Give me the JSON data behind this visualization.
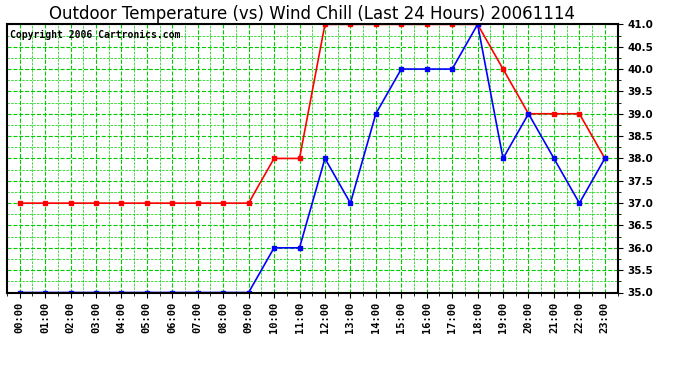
{
  "title": "Outdoor Temperature (vs) Wind Chill (Last 24 Hours) 20061114",
  "copyright": "Copyright 2006 Cartronics.com",
  "x_labels": [
    "00:00",
    "01:00",
    "02:00",
    "03:00",
    "04:00",
    "05:00",
    "06:00",
    "07:00",
    "08:00",
    "09:00",
    "10:00",
    "11:00",
    "12:00",
    "13:00",
    "14:00",
    "15:00",
    "16:00",
    "17:00",
    "18:00",
    "19:00",
    "20:00",
    "21:00",
    "22:00",
    "23:00"
  ],
  "ylim": [
    35.0,
    41.0
  ],
  "ytick_step": 0.5,
  "red_data": [
    37.0,
    37.0,
    37.0,
    37.0,
    37.0,
    37.0,
    37.0,
    37.0,
    37.0,
    37.0,
    38.0,
    38.0,
    41.0,
    41.0,
    41.0,
    41.0,
    41.0,
    41.0,
    41.0,
    40.0,
    39.0,
    39.0,
    39.0,
    38.0
  ],
  "blue_data": [
    35.0,
    35.0,
    35.0,
    35.0,
    35.0,
    35.0,
    35.0,
    35.0,
    35.0,
    35.0,
    36.0,
    36.0,
    38.0,
    37.0,
    39.0,
    40.0,
    40.0,
    40.0,
    41.0,
    38.0,
    39.0,
    38.0,
    37.0,
    38.0
  ],
  "red_color": "#ff0000",
  "blue_color": "#0000ff",
  "bg_color": "#ffffff",
  "plot_bg_color": "#ffffff",
  "grid_color": "#00cc00",
  "title_fontsize": 12,
  "copyright_fontsize": 7,
  "tick_fontsize": 7.5,
  "marker": "s",
  "marker_size": 3,
  "linewidth": 1.2
}
